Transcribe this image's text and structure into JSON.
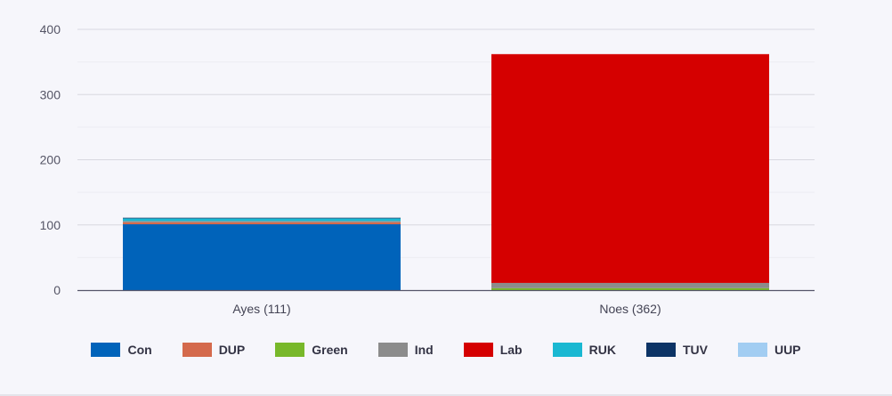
{
  "chart_data": {
    "type": "bar",
    "stacked": true,
    "categories": [
      "Ayes (111)",
      "Noes (362)"
    ],
    "series": [
      {
        "name": "Con",
        "color": "#0063ba",
        "values": [
          101,
          0
        ]
      },
      {
        "name": "DUP",
        "color": "#d46a4c",
        "values": [
          3,
          0
        ]
      },
      {
        "name": "Green",
        "color": "#78b82a",
        "values": [
          0,
          3
        ]
      },
      {
        "name": "Ind",
        "color": "#8c8c8c",
        "values": [
          2,
          8
        ]
      },
      {
        "name": "Lab",
        "color": "#d50000",
        "values": [
          0,
          351
        ]
      },
      {
        "name": "RUK",
        "color": "#1ab8d2",
        "values": [
          4,
          0
        ]
      },
      {
        "name": "TUV",
        "color": "#0d3466",
        "values": [
          1,
          0
        ]
      },
      {
        "name": "UUP",
        "color": "#a2cdf2",
        "values": [
          0,
          0
        ]
      }
    ],
    "y_ticks": [
      0,
      100,
      200,
      300,
      400
    ],
    "ylim": [
      0,
      400
    ],
    "grid": true,
    "legend_position": "bottom"
  }
}
